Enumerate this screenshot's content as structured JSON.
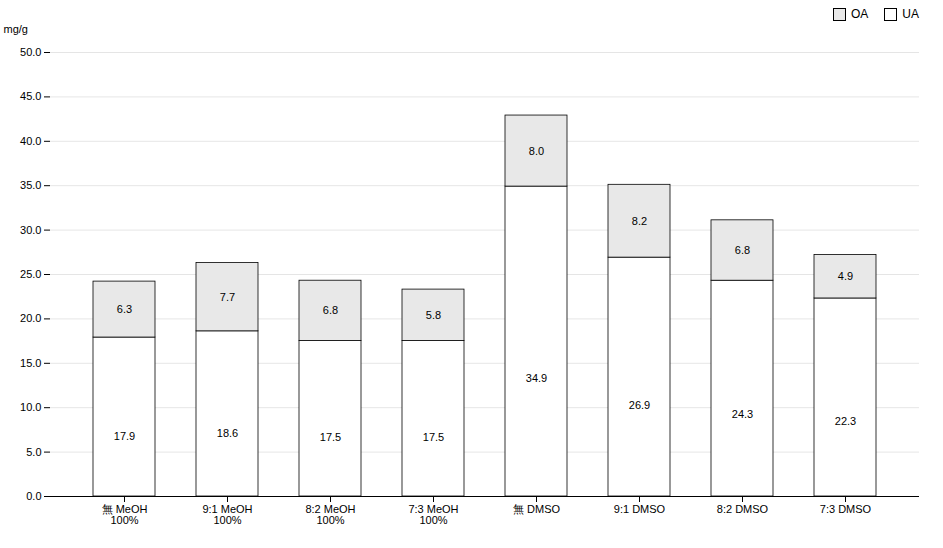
{
  "chart_data": {
    "type": "bar",
    "stacked": true,
    "categories": [
      "無 MeOH\n100%",
      "9:1 MeOH\n100%",
      "8:2 MeOH\n100%",
      "7:3 MeOH\n100%",
      "無 DMSO",
      "9:1 DMSO",
      "8:2 DMSO",
      "7:3 DMSO"
    ],
    "series": [
      {
        "name": "UA",
        "color": "#ffffff",
        "values": [
          17.9,
          18.6,
          17.5,
          17.5,
          34.9,
          26.9,
          24.3,
          22.3
        ],
        "value_labels": [
          "17.9",
          "18.6",
          "17.5",
          "17.5",
          "34.9",
          "26.9",
          "24.3",
          "22.3"
        ]
      },
      {
        "name": "OA",
        "color": "#e8e8e8",
        "values": [
          6.3,
          7.7,
          6.8,
          5.8,
          8.0,
          8.2,
          6.8,
          4.9
        ],
        "value_labels": [
          "6.3",
          "7.7",
          "6.8",
          "5.8",
          "8.0",
          "8.2",
          "6.8",
          "4.9"
        ]
      }
    ],
    "y_label": "mg/g",
    "ylim": [
      0,
      50
    ],
    "yticks": [
      {
        "value": 0,
        "label": "0.0"
      },
      {
        "value": 5,
        "label": "5.0"
      },
      {
        "value": 10,
        "label": "10.0"
      },
      {
        "value": 15,
        "label": "15.0"
      },
      {
        "value": 20,
        "label": "20.0"
      },
      {
        "value": 25,
        "label": "25.0"
      },
      {
        "value": 30,
        "label": "30.0"
      },
      {
        "value": 35,
        "label": "35.0"
      },
      {
        "value": 40,
        "label": "40.0"
      },
      {
        "value": 45,
        "label": "45.0"
      },
      {
        "value": 50,
        "label": "50.0"
      }
    ],
    "grid": true,
    "legend": "upper right",
    "data_labels": true
  }
}
